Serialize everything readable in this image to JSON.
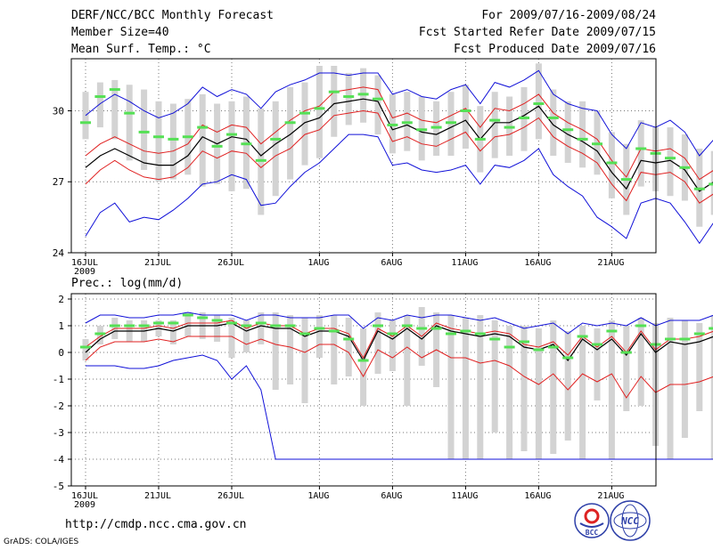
{
  "header": {
    "title": "DERF/NCC/BCC Monthly Forecast",
    "member_size": "Member Size=40",
    "variable_temp": "Mean Surf. Temp.: °C",
    "forecast_period": "For 2009/07/16-2009/08/24",
    "refer_date": "Fcst Started Refer Date 2009/07/15",
    "produced_date": "Fcst Produced Date 2009/07/16"
  },
  "footer": {
    "url": "http://cmdp.ncc.cma.gov.cn",
    "grads": "GrADS: COLA/IGES",
    "logo_bcc_text": "BCC",
    "logo_ncc_text": "NCC"
  },
  "colors": {
    "box": "#d3d3d3",
    "green": "#55e055",
    "red": "#e02020",
    "blue": "#1010d8",
    "black": "#000000",
    "grid": "#777777"
  },
  "chart_data": [
    {
      "type": "line",
      "title": "Mean Surf. Temp.: °C",
      "xlabel": "",
      "ylabel": "",
      "ylim": [
        24,
        32.2
      ],
      "yticks": [
        24,
        27,
        30
      ],
      "xlim": [
        0,
        40
      ],
      "x_ticks": [
        {
          "day": 0,
          "label": "16JUL",
          "sub": "2009"
        },
        {
          "day": 5,
          "label": "21JUL"
        },
        {
          "day": 10,
          "label": "26JUL"
        },
        {
          "day": 16,
          "label": "1AUG"
        },
        {
          "day": 21,
          "label": "6AUG"
        },
        {
          "day": 26,
          "label": "11AUG"
        },
        {
          "day": 31,
          "label": "16AUG"
        },
        {
          "day": 36,
          "label": "21AUG"
        }
      ],
      "grid": true,
      "series": [
        {
          "name": "ensemble_mean",
          "color": "black",
          "values": [
            27.6,
            28.1,
            28.4,
            28.1,
            27.8,
            27.7,
            27.7,
            28.1,
            28.9,
            28.6,
            28.9,
            28.8,
            28.1,
            28.6,
            29.0,
            29.5,
            29.7,
            30.3,
            30.4,
            30.5,
            30.4,
            29.2,
            29.4,
            29.1,
            29.0,
            29.3,
            29.6,
            28.8,
            29.5,
            29.5,
            29.8,
            30.2,
            29.4,
            29.0,
            28.7,
            28.3,
            27.4,
            26.7,
            27.9,
            27.8,
            27.9,
            27.5,
            26.6,
            27.0
          ]
        },
        {
          "name": "mean_plus_sd",
          "color": "red",
          "values": [
            28.1,
            28.6,
            28.9,
            28.6,
            28.3,
            28.2,
            28.3,
            28.6,
            29.4,
            29.1,
            29.4,
            29.3,
            28.6,
            29.1,
            29.6,
            30.0,
            30.2,
            30.8,
            30.9,
            31.0,
            30.9,
            29.7,
            29.9,
            29.6,
            29.5,
            29.8,
            30.1,
            29.3,
            30.1,
            30.0,
            30.3,
            30.7,
            29.9,
            29.5,
            29.2,
            28.8,
            27.9,
            27.2,
            28.4,
            28.3,
            28.4,
            28.0,
            27.1,
            27.5
          ]
        },
        {
          "name": "mean_minus_sd",
          "color": "red",
          "values": [
            26.9,
            27.5,
            27.9,
            27.5,
            27.2,
            27.1,
            27.2,
            27.6,
            28.3,
            28.0,
            28.3,
            28.2,
            27.6,
            28.1,
            28.4,
            29.0,
            29.2,
            29.8,
            29.9,
            30.0,
            29.9,
            28.7,
            28.9,
            28.6,
            28.5,
            28.8,
            29.1,
            28.3,
            28.9,
            29.0,
            29.3,
            29.7,
            28.9,
            28.5,
            28.2,
            27.8,
            26.9,
            26.2,
            27.4,
            27.3,
            27.4,
            27.0,
            26.1,
            26.5
          ]
        },
        {
          "name": "ensemble_max",
          "color": "blue",
          "values": [
            29.8,
            30.3,
            30.7,
            30.4,
            30.0,
            29.7,
            29.9,
            30.3,
            31.0,
            30.6,
            30.9,
            30.7,
            30.1,
            30.8,
            31.1,
            31.3,
            31.6,
            31.6,
            31.5,
            31.6,
            31.6,
            30.7,
            30.9,
            30.6,
            30.5,
            30.9,
            31.1,
            30.3,
            31.2,
            31.0,
            31.3,
            31.7,
            30.7,
            30.3,
            30.1,
            30.0,
            29.0,
            28.4,
            29.5,
            29.3,
            29.6,
            29.1,
            28.1,
            28.8
          ]
        },
        {
          "name": "ensemble_min",
          "color": "blue",
          "values": [
            24.7,
            25.7,
            26.1,
            25.3,
            25.5,
            25.4,
            25.8,
            26.3,
            26.9,
            27.0,
            27.3,
            27.1,
            26.0,
            26.1,
            26.8,
            27.4,
            27.8,
            28.4,
            29.0,
            29.0,
            28.9,
            27.7,
            27.8,
            27.5,
            27.4,
            27.5,
            27.7,
            26.9,
            27.7,
            27.6,
            27.9,
            28.4,
            27.3,
            26.8,
            26.4,
            25.5,
            25.1,
            24.6,
            26.1,
            26.3,
            26.1,
            25.3,
            24.4,
            25.3
          ]
        },
        {
          "name": "mode",
          "color": "green",
          "values": [
            29.5,
            30.6,
            30.9,
            29.9,
            29.1,
            28.9,
            28.8,
            28.9,
            29.3,
            28.5,
            29.0,
            28.6,
            27.9,
            28.8,
            29.5,
            29.9,
            30.1,
            30.8,
            30.6,
            30.7,
            30.5,
            29.4,
            29.5,
            29.2,
            29.3,
            29.5,
            30.0,
            28.8,
            29.6,
            29.3,
            29.7,
            30.3,
            29.7,
            29.2,
            28.8,
            28.6,
            27.8,
            27.1,
            28.4,
            28.2,
            28.0,
            27.6,
            26.7,
            26.9
          ]
        },
        {
          "name": "box_top",
          "color": "grey",
          "values": [
            30.8,
            31.2,
            31.3,
            31.1,
            30.9,
            30.4,
            30.3,
            30.5,
            30.7,
            30.3,
            30.4,
            30.6,
            30.1,
            30.4,
            31.0,
            31.2,
            31.9,
            31.9,
            31.6,
            31.8,
            31.5,
            30.7,
            30.8,
            30.6,
            30.4,
            30.8,
            31.1,
            30.2,
            30.8,
            30.6,
            31.0,
            32.0,
            30.9,
            30.4,
            30.4,
            30.0,
            29.1,
            28.6,
            29.6,
            29.3,
            29.3,
            29.0,
            28.4,
            28.3
          ]
        },
        {
          "name": "box_bottom",
          "color": "grey",
          "values": [
            28.8,
            29.3,
            28.8,
            27.9,
            27.5,
            27.0,
            27.1,
            27.3,
            26.8,
            26.9,
            26.6,
            26.7,
            25.6,
            26.4,
            27.1,
            27.7,
            28.0,
            28.9,
            29.4,
            29.5,
            29.0,
            28.2,
            28.3,
            27.9,
            28.1,
            28.1,
            28.4,
            27.4,
            28.0,
            28.1,
            28.3,
            28.8,
            28.1,
            27.8,
            27.6,
            27.3,
            26.3,
            25.6,
            26.8,
            26.6,
            26.4,
            26.2,
            25.1,
            25.6
          ]
        }
      ]
    },
    {
      "type": "line",
      "title": "Prec.: log(mm/d)",
      "xlabel": "",
      "ylabel": "",
      "ylim": [
        -5,
        2.2
      ],
      "yticks": [
        -5,
        -4,
        -3,
        -2,
        -1,
        0,
        1,
        2
      ],
      "xlim": [
        0,
        40
      ],
      "x_ticks": [
        {
          "day": 0,
          "label": "16JUL",
          "sub": "2009"
        },
        {
          "day": 5,
          "label": "21JUL"
        },
        {
          "day": 10,
          "label": "26JUL"
        },
        {
          "day": 16,
          "label": "1AUG"
        },
        {
          "day": 21,
          "label": "6AUG"
        },
        {
          "day": 26,
          "label": "11AUG"
        },
        {
          "day": 31,
          "label": "16AUG"
        },
        {
          "day": 36,
          "label": "21AUG"
        }
      ],
      "grid": true,
      "series": [
        {
          "name": "ensemble_mean",
          "color": "black",
          "values": [
            0.0,
            0.5,
            0.8,
            0.8,
            0.8,
            0.9,
            0.8,
            1.0,
            1.0,
            1.0,
            1.1,
            0.8,
            1.0,
            0.9,
            0.9,
            0.6,
            0.8,
            0.8,
            0.6,
            -0.3,
            0.8,
            0.5,
            0.9,
            0.5,
            1.0,
            0.8,
            0.7,
            0.6,
            0.7,
            0.6,
            0.2,
            0.1,
            0.3,
            -0.3,
            0.5,
            0.1,
            0.5,
            -0.1,
            0.7,
            0.0,
            0.4,
            0.3,
            0.4,
            0.6
          ]
        },
        {
          "name": "mean_plus_sd",
          "color": "red",
          "values": [
            0.2,
            0.6,
            0.9,
            0.9,
            0.9,
            1.0,
            0.9,
            1.1,
            1.1,
            1.1,
            1.2,
            0.9,
            1.1,
            1.0,
            1.0,
            0.7,
            0.9,
            0.9,
            0.7,
            -0.2,
            0.9,
            0.6,
            1.0,
            0.6,
            1.1,
            0.9,
            0.8,
            0.7,
            0.8,
            0.7,
            0.3,
            0.2,
            0.4,
            -0.1,
            0.6,
            0.2,
            0.6,
            0.0,
            0.8,
            0.1,
            0.5,
            0.5,
            0.6,
            0.8
          ]
        },
        {
          "name": "mean_minus_sd",
          "color": "red",
          "values": [
            -0.3,
            0.2,
            0.4,
            0.4,
            0.4,
            0.5,
            0.4,
            0.6,
            0.6,
            0.6,
            0.6,
            0.3,
            0.5,
            0.3,
            0.2,
            0.0,
            0.3,
            0.3,
            0.0,
            -0.9,
            0.1,
            -0.2,
            0.2,
            -0.2,
            0.1,
            -0.2,
            -0.2,
            -0.4,
            -0.3,
            -0.5,
            -0.9,
            -1.2,
            -0.8,
            -1.4,
            -0.8,
            -1.1,
            -0.8,
            -1.7,
            -0.9,
            -1.5,
            -1.2,
            -1.2,
            -1.1,
            -0.9
          ]
        },
        {
          "name": "ensemble_max",
          "color": "blue",
          "values": [
            1.1,
            1.4,
            1.4,
            1.3,
            1.3,
            1.4,
            1.4,
            1.5,
            1.4,
            1.4,
            1.4,
            1.2,
            1.4,
            1.4,
            1.3,
            1.3,
            1.3,
            1.4,
            1.4,
            0.9,
            1.3,
            1.2,
            1.4,
            1.3,
            1.4,
            1.4,
            1.3,
            1.2,
            1.3,
            1.1,
            0.9,
            1.0,
            1.1,
            0.7,
            1.1,
            1.0,
            1.1,
            1.0,
            1.3,
            1.0,
            1.2,
            1.2,
            1.2,
            1.4
          ]
        },
        {
          "name": "ensemble_min",
          "color": "blue",
          "values": [
            -0.5,
            -0.5,
            -0.5,
            -0.6,
            -0.6,
            -0.5,
            -0.3,
            -0.2,
            -0.1,
            -0.3,
            -1.0,
            -0.5,
            -1.4,
            -4.0,
            -4.0,
            -4.0,
            -4.0,
            -4.0,
            -4.0,
            -4.0,
            -4.0,
            -4.0,
            -4.0,
            -4.0,
            -4.0,
            -4.0,
            -4.0,
            -4.0,
            -4.0,
            -4.0,
            -4.0,
            -4.0,
            -4.0,
            -4.0,
            -4.0,
            -4.0,
            -4.0,
            -4.0,
            -4.0,
            -4.0,
            -4.0,
            -4.0,
            -4.0,
            -4.0
          ]
        },
        {
          "name": "mode",
          "color": "green",
          "values": [
            0.2,
            0.7,
            1.0,
            1.0,
            1.0,
            1.1,
            1.1,
            1.4,
            1.3,
            1.2,
            1.1,
            1.0,
            1.1,
            1.0,
            1.0,
            0.7,
            0.9,
            0.8,
            0.5,
            -0.3,
            1.0,
            0.7,
            1.0,
            0.9,
            0.9,
            0.7,
            0.8,
            0.7,
            0.5,
            0.2,
            0.4,
            0.1,
            0.2,
            -0.2,
            0.6,
            0.3,
            0.8,
            0.0,
            1.0,
            0.3,
            0.5,
            0.5,
            0.7,
            0.9
          ]
        },
        {
          "name": "box_top",
          "color": "grey",
          "values": [
            0.5,
            1.0,
            1.3,
            1.2,
            1.2,
            1.2,
            1.2,
            1.5,
            1.5,
            1.4,
            1.3,
            1.2,
            1.5,
            1.5,
            1.4,
            1.3,
            1.4,
            1.4,
            1.3,
            0.9,
            1.5,
            1.2,
            1.4,
            1.7,
            1.5,
            1.4,
            1.3,
            1.4,
            1.2,
            1.0,
            1.0,
            0.9,
            1.2,
            0.8,
            1.0,
            0.9,
            1.2,
            1.0,
            1.3,
            1.1,
            1.3,
            1.2,
            1.1,
            1.4
          ]
        },
        {
          "name": "box_bottom",
          "color": "grey",
          "values": [
            -0.3,
            0.3,
            0.5,
            0.4,
            0.4,
            0.6,
            0.3,
            0.6,
            0.5,
            0.4,
            -0.2,
            0.0,
            0.3,
            -1.4,
            -1.2,
            -1.9,
            -0.2,
            -1.2,
            -0.9,
            -2.0,
            -0.8,
            -0.7,
            -2.0,
            -0.5,
            -1.3,
            -4.0,
            -4.0,
            -4.0,
            -3.0,
            -4.0,
            -3.7,
            -4.0,
            -3.8,
            -3.3,
            -4.0,
            -1.8,
            -4.0,
            -2.2,
            -2.0,
            -3.5,
            -4.0,
            -3.2,
            -2.2,
            -4.0
          ]
        }
      ]
    }
  ]
}
